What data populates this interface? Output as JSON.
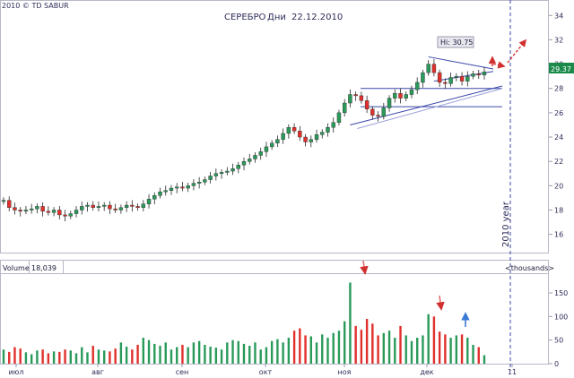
{
  "copyright": "2010 © TD SABUR",
  "chart_data": {
    "type": "candlestick",
    "title": "СЕРЕБРО",
    "period": "Дни",
    "date": "22.12.2010",
    "y_axis": {
      "ylim": [
        14.5,
        35.2
      ],
      "ticks": [
        16,
        18,
        20,
        22,
        24,
        26,
        28,
        30,
        32,
        34
      ]
    },
    "last_price": "29.37",
    "hi_label": "Hi: 30.75",
    "year_marker": "2010 year",
    "x_axis": {
      "labels": [
        "июл",
        "авг",
        "сен",
        "окт",
        "ноя",
        "дек",
        "11"
      ]
    },
    "horizontal_levels": [
      28.0,
      26.5
    ],
    "price_series": [
      18.8,
      18.2,
      18.0,
      17.9,
      18.0,
      18.1,
      18.3,
      17.9,
      17.8,
      18.0,
      17.6,
      17.5,
      17.7,
      18.0,
      18.3,
      18.4,
      18.2,
      18.3,
      18.4,
      18.1,
      18.0,
      18.2,
      18.4,
      18.3,
      18.2,
      18.5,
      18.9,
      19.2,
      19.5,
      19.6,
      19.8,
      19.9,
      19.8,
      20.0,
      20.2,
      20.3,
      20.5,
      20.8,
      21.0,
      21.1,
      21.2,
      21.4,
      21.7,
      22.0,
      22.2,
      22.5,
      22.8,
      23.2,
      23.5,
      23.8,
      24.3,
      24.8,
      24.5,
      24.0,
      23.6,
      23.8,
      24.2,
      24.4,
      24.8,
      25.2,
      26.0,
      26.8,
      27.5,
      27.4,
      27.0,
      26.3,
      25.8,
      25.7,
      26.4,
      27.2,
      27.6,
      27.2,
      27.5,
      27.9,
      28.5,
      29.3,
      30.0,
      29.3,
      28.5,
      28.4,
      28.9,
      29.0,
      28.6,
      29.0,
      29.2,
      29.1,
      29.37
    ],
    "volume": {
      "label": "Volume",
      "value": "18,039",
      "units": "<thousands>",
      "ylim": [
        0,
        190
      ],
      "ticks": [
        0,
        50,
        100,
        150
      ],
      "values": [
        30,
        25,
        35,
        32,
        24,
        20,
        28,
        30,
        22,
        26,
        25,
        30,
        28,
        22,
        35,
        24,
        38,
        30,
        28,
        26,
        32,
        45,
        36,
        30,
        40,
        55,
        50,
        42,
        38,
        45,
        30,
        35,
        40,
        35,
        45,
        48,
        40,
        36,
        34,
        30,
        45,
        50,
        48,
        42,
        38,
        45,
        30,
        35,
        48,
        52,
        45,
        55,
        70,
        75,
        60,
        58,
        45,
        62,
        55,
        65,
        70,
        90,
        172,
        80,
        72,
        95,
        85,
        60,
        65,
        70,
        55,
        80,
        60,
        48,
        55,
        60,
        105,
        100,
        68,
        62,
        55,
        60,
        62,
        55,
        40,
        35,
        18
      ]
    }
  },
  "colors": {
    "up": "#2a9a5a",
    "down": "#e0302c",
    "axis_text": "#2c2c5a",
    "line": "#3a46a8",
    "price_badge": "#1a8a4a",
    "arrow": "#d23030",
    "blue_arrow": "#3a7ad6"
  }
}
